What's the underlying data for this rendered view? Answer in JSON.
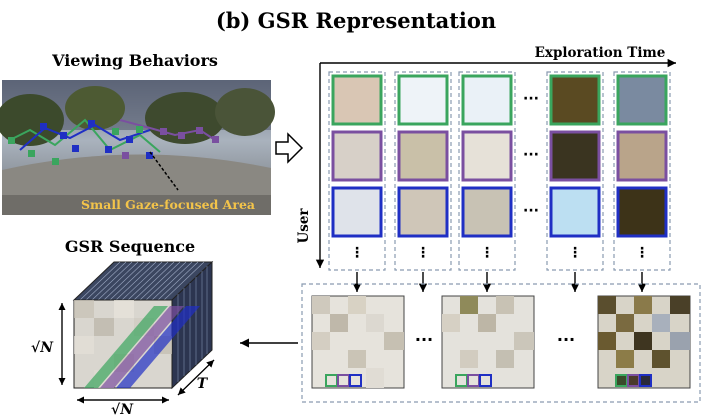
{
  "figure": {
    "title": "(b) GSR Representation",
    "viewing_behaviors_label": "Viewing Behaviors",
    "gaze_annotation": "Small Gaze-focused Area",
    "exploration_time_label": "Exploration Time",
    "user_label": "User",
    "gsr_sequence_label": "GSR Sequence",
    "sqrt_n_vertical": "√N",
    "sqrt_n_horizontal": "√N",
    "t_label": "T",
    "ellipsis_h": "···",
    "ellipsis_v": "⋮"
  },
  "colors": {
    "user1": "#3aa55e",
    "user2": "#7a4fa0",
    "user3": "#1f2fc4",
    "dashed_box": "#8a9bb0"
  },
  "grid": {
    "rows": [
      "user1",
      "user2",
      "user3"
    ],
    "patches": [
      [
        "#d9c6b4",
        "#eef3f8",
        "#eaf1f7",
        "#5a4a22",
        "#7a8aa0"
      ],
      [
        "#d7d0c8",
        "#c9c0a8",
        "#e6e1d8",
        "#3a3420",
        "#b9a48a"
      ],
      [
        "#dfe3ea",
        "#cfc6b8",
        "#c8c2b4",
        "#bcdff2",
        "#3d3318"
      ]
    ]
  }
}
